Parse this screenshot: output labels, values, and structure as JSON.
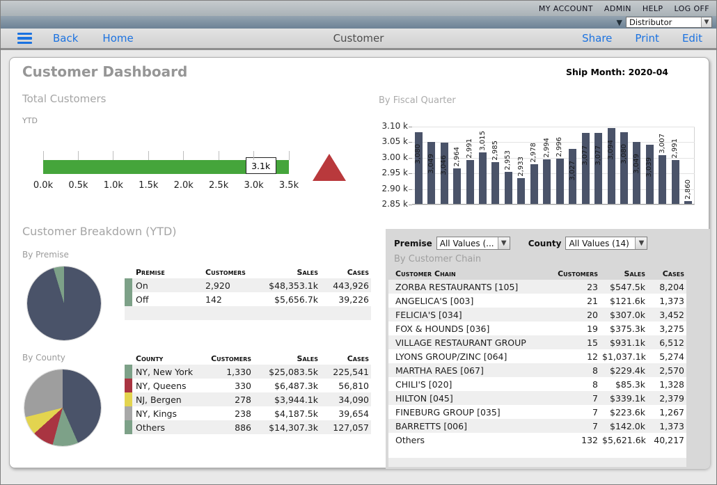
{
  "topbar": {
    "links": [
      "MY ACCOUNT",
      "ADMIN",
      "HELP",
      "LOG OFF"
    ],
    "distributor": "Distributor"
  },
  "navbar": {
    "back": "Back",
    "home": "Home",
    "title": "Customer",
    "share": "Share",
    "print": "Print",
    "edit": "Edit"
  },
  "page": {
    "title": "Customer Dashboard",
    "ship_month": "Ship Month: 2020-04"
  },
  "total_customers": {
    "title": "Total Customers",
    "subtitle": "YTD",
    "chart_data": {
      "type": "bullet",
      "value": 3100,
      "value_label": "3.1k",
      "range": [
        0,
        3500
      ],
      "tick_labels": [
        "0.0k",
        "0.5k",
        "1.0k",
        "1.5k",
        "2.0k",
        "2.5k",
        "3.0k",
        "3.5k"
      ],
      "bar_color": "#45a53b",
      "marker_color": "#b9393c"
    }
  },
  "fiscal_quarter": {
    "title": "By Fiscal Quarter",
    "chart_data": {
      "type": "bar",
      "values": [
        3080,
        3049,
        3046,
        2964,
        2991,
        3015,
        2985,
        2953,
        2933,
        2978,
        2994,
        2996,
        3027,
        3077,
        3077,
        3094,
        3080,
        3049,
        3039,
        3007,
        2991,
        2860
      ],
      "value_labels": [
        "3,080",
        "3,049",
        "3,046",
        "2,964",
        "2,991",
        "3,015",
        "2,985",
        "2,953",
        "2,933",
        "2,978",
        "2,994",
        "2,996",
        "3,027",
        "3,077",
        "3,077",
        "3,094",
        "3,080",
        "3,049",
        "3,039",
        "3,007",
        "2,991",
        "2,860"
      ],
      "ylim": [
        2850,
        3100
      ],
      "ytick_labels": [
        "3.10 k",
        "3.05 k",
        "3.00 k",
        "2.95 k",
        "2.90 k",
        "2.85 k"
      ],
      "bar_color": "#4a5369",
      "grid": true
    }
  },
  "breakdown": {
    "title": "Customer Breakdown (YTD)",
    "premise": {
      "subtitle": "By Premise",
      "chart_data": {
        "type": "pie",
        "labels": [
          "On",
          "Off"
        ],
        "values": [
          2920,
          142
        ],
        "colors": [
          "#4a5369",
          "#7da188"
        ]
      },
      "table": {
        "headers": [
          "Premise",
          "Customers",
          "Sales",
          "Cases"
        ],
        "rows": [
          {
            "swatch": "#7da188",
            "cells": [
              "On",
              "2,920",
              "$48,353.1k",
              "443,926"
            ]
          },
          {
            "swatch": "#7da188",
            "cells": [
              "Off",
              "142",
              "$5,656.7k",
              "39,226"
            ]
          }
        ]
      }
    },
    "county": {
      "subtitle": "By County",
      "chart_data": {
        "type": "pie",
        "labels": [
          "NY, New York",
          "NY, Queens",
          "NJ, Bergen",
          "NY, Kings",
          "Others"
        ],
        "values": [
          1330,
          330,
          278,
          238,
          886
        ],
        "colors": [
          "#4a5369",
          "#7da188",
          "#a93441",
          "#e3d44f",
          "#9e9e9e"
        ]
      },
      "table": {
        "headers": [
          "County",
          "Customers",
          "Sales",
          "Cases"
        ],
        "rows": [
          {
            "swatch": "#7da188",
            "cells": [
              "NY, New York",
              "1,330",
              "$25,083.5k",
              "225,541"
            ]
          },
          {
            "swatch": "#a93441",
            "cells": [
              "NY, Queens",
              "330",
              "$6,487.3k",
              "56,810"
            ]
          },
          {
            "swatch": "#e3d44f",
            "cells": [
              "NJ, Bergen",
              "278",
              "$3,944.1k",
              "34,090"
            ]
          },
          {
            "swatch": "#a8a8a8",
            "cells": [
              "NY, Kings",
              "238",
              "$4,187.5k",
              "39,654"
            ]
          },
          {
            "swatch": "#7da188",
            "cells": [
              "Others",
              "886",
              "$14,307.3k",
              "127,057"
            ]
          }
        ]
      }
    }
  },
  "chain": {
    "filters": {
      "premise_label": "Premise",
      "premise_value": "All Values (...",
      "county_label": "County",
      "county_value": "All Values (14)"
    },
    "title": "By Customer Chain",
    "table": {
      "headers": [
        "Customer Chain",
        "Customers",
        "Sales",
        "Cases"
      ],
      "rows": [
        [
          "ZORBA RESTAURANTS [105]",
          "23",
          "$547.5k",
          "8,204"
        ],
        [
          "ANGELICA'S [003]",
          "21",
          "$121.6k",
          "1,373"
        ],
        [
          "FELICIA'S [034]",
          "20",
          "$307.0k",
          "3,452"
        ],
        [
          "FOX & HOUNDS [036]",
          "19",
          "$375.3k",
          "3,275"
        ],
        [
          "VILLAGE RESTAURANT GROUP",
          "15",
          "$931.1k",
          "6,512"
        ],
        [
          "LYONS GROUP/ZINC [064]",
          "12",
          "$1,037.1k",
          "5,274"
        ],
        [
          "MARTHA RAES [067]",
          "8",
          "$229.4k",
          "2,570"
        ],
        [
          "CHILI'S [020]",
          "8",
          "$85.3k",
          "1,328"
        ],
        [
          "HILTON [045]",
          "7",
          "$339.1k",
          "2,379"
        ],
        [
          "FINEBURG GROUP [035]",
          "7",
          "$223.6k",
          "1,267"
        ],
        [
          "BARRETTS [006]",
          "7",
          "$142.0k",
          "1,373"
        ],
        [
          "Others",
          "132",
          "$5,621.6k",
          "40,217"
        ]
      ]
    }
  }
}
